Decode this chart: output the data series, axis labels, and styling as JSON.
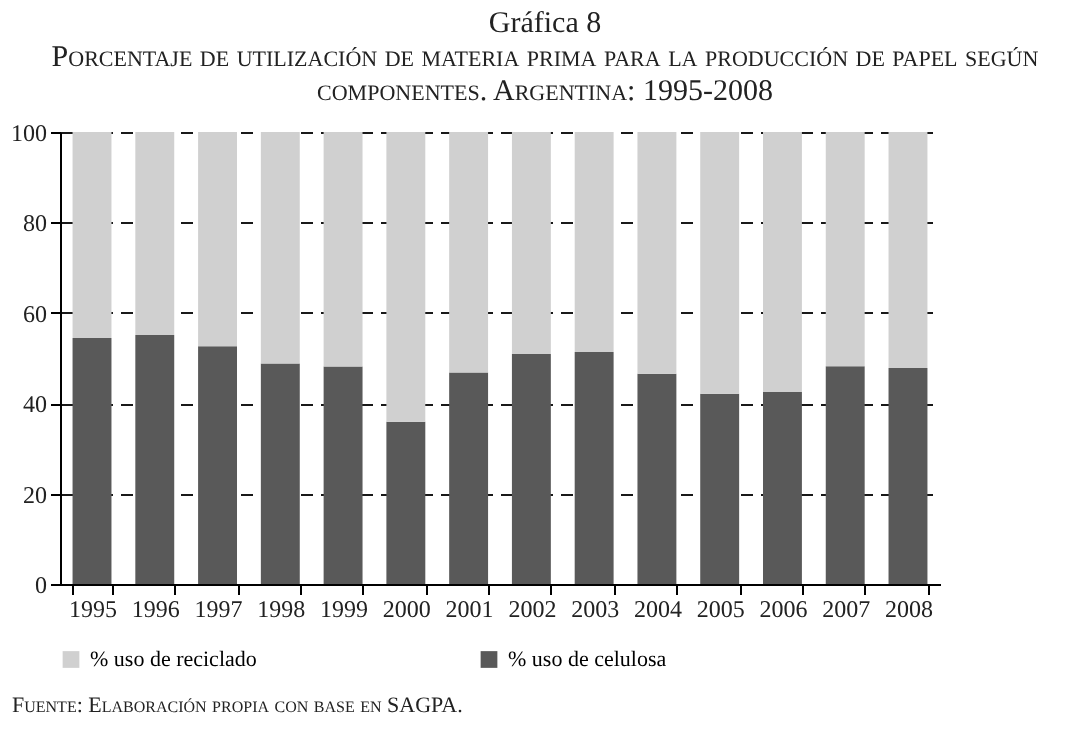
{
  "chart_data": {
    "type": "bar",
    "title": "Gráfica 8",
    "subtitle": "Porcentaje de utilización de materia prima para la producción de papel según componentes. Argentina: 1995-2008",
    "categories": [
      "1995",
      "1996",
      "1997",
      "1998",
      "1999",
      "2000",
      "2001",
      "2002",
      "2003",
      "2004",
      "2005",
      "2006",
      "2007",
      "2008"
    ],
    "stacked": true,
    "series": [
      {
        "name": "% uso de celulosa",
        "color": "#595959",
        "values": [
          54.4,
          55.1,
          52.6,
          48.8,
          48.1,
          35.9,
          46.8,
          50.9,
          51.3,
          46.5,
          42.1,
          42.5,
          48.2,
          47.8
        ]
      },
      {
        "name": "% uso de reciclado",
        "color": "#d0d0d0",
        "values": [
          45.6,
          44.9,
          47.4,
          51.2,
          51.9,
          64.1,
          53.2,
          49.1,
          48.7,
          53.5,
          57.9,
          57.5,
          51.8,
          52.2
        ]
      }
    ],
    "ylim": [
      0,
      100
    ],
    "yticks": [
      0,
      20,
      40,
      60,
      80,
      100
    ],
    "grid": "y",
    "legend": "bottom",
    "annotations": [
      "Fuente: Elaboración propia con base en SAGPA."
    ]
  }
}
